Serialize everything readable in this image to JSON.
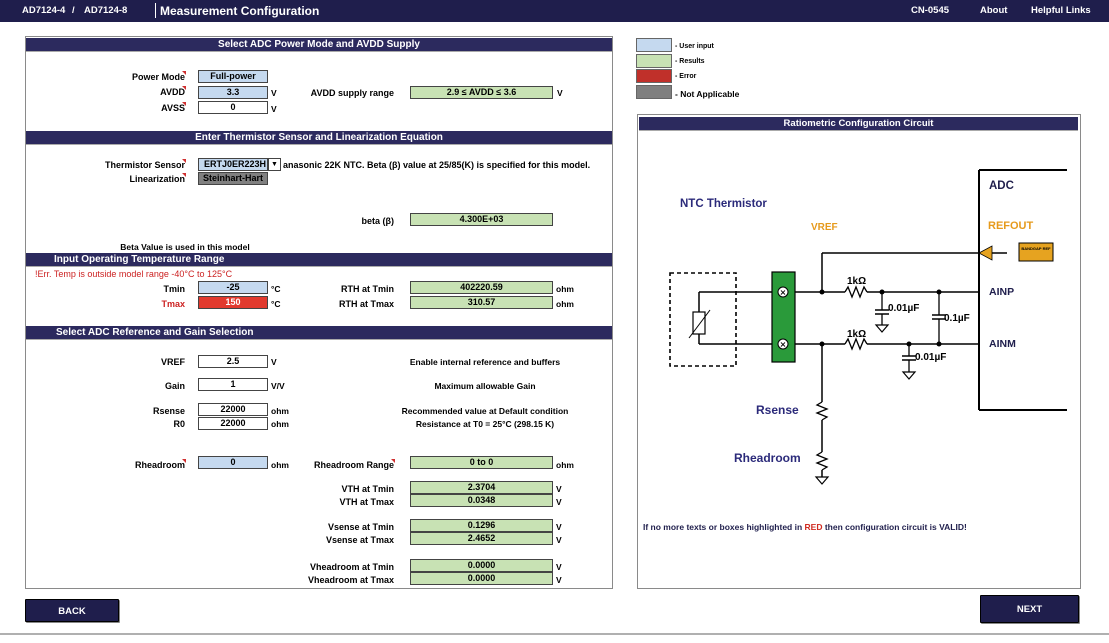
{
  "topbar": {
    "part1": "AD7124-4",
    "slash": "/",
    "part2": "AD7124-8",
    "title": "Measurement Configuration",
    "cn": "CN-0545",
    "about": "About",
    "links": "Helpful Links"
  },
  "sections": {
    "power": "Select ADC Power Mode and AVDD Supply",
    "thermistor": "Enter Thermistor Sensor and Linearization Equation",
    "temperature": "Input Operating Temperature Range",
    "reference": "Select ADC Reference and Gain Selection"
  },
  "power": {
    "mode_label": "Power Mode",
    "mode_value": "Full-power",
    "avdd_label": "AVDD",
    "avdd_value": "3.3",
    "avdd_unit": "V",
    "avss_label": "AVSS",
    "avss_value": "0",
    "avss_unit": "V",
    "range_label": "AVDD supply range",
    "range_value": "2.9 ≤ AVDD ≤ 3.6",
    "range_unit": "V"
  },
  "thermistor": {
    "sensor_label": "Thermistor Sensor",
    "sensor_value": "ERTJ0ER223H",
    "sensor_note": "anasonic 22K NTC. Beta (β) value at 25/85(K) is specified for this model.",
    "lin_label": "Linearization",
    "lin_value": "Steinhart-Hart",
    "beta_label": "beta (β)",
    "beta_value": "4.300E+03",
    "beta_note": "Beta Value is used in this model"
  },
  "temperature": {
    "error": "!Err. Temp is outside model range -40°C to 125°C",
    "tmin_label": "Tmin",
    "tmin_value": "-25",
    "tmin_unit": "°C",
    "tmax_label": "Tmax",
    "tmax_value": "150",
    "tmax_unit": "°C",
    "rth_min_label": "RTH at Tmin",
    "rth_min_value": "402220.59",
    "rth_min_unit": "ohm",
    "rth_max_label": "RTH at Tmax",
    "rth_max_value": "310.57",
    "rth_max_unit": "ohm"
  },
  "reference": {
    "vref_label": "VREF",
    "vref_value": "2.5",
    "vref_unit": "V",
    "vref_note": "Enable internal reference and buffers",
    "gain_label": "Gain",
    "gain_value": "1",
    "gain_unit": "V/V",
    "gain_note": "Maximum allowable Gain",
    "rsense_label": "Rsense",
    "rsense_value": "22000",
    "rsense_unit": "ohm",
    "rsense_note": "Recommended value at Default condition",
    "r0_label": "R0",
    "r0_value": "22000",
    "r0_unit": "ohm",
    "r0_note": "Resistance at T0 = 25°C  (298.15 K)",
    "rhead_label": "Rheadroom",
    "rhead_value": "0",
    "rhead_unit": "ohm",
    "rhead_range_label": "Rheadroom Range",
    "rhead_range_value": "0 to 0",
    "rhead_range_unit": "ohm",
    "vth_min_label": "VTH at Tmin",
    "vth_min_value": "2.3704",
    "vth_max_label": "VTH at Tmax",
    "vth_max_value": "0.0348",
    "vsense_min_label": "Vsense at Tmin",
    "vsense_min_value": "0.1296",
    "vsense_max_label": "Vsense at Tmax",
    "vsense_max_value": "2.4652",
    "vhead_min_label": "Vheadroom at Tmin",
    "vhead_min_value": "0.0000",
    "vhead_max_label": "Vheadroom at Tmax",
    "vhead_max_value": "0.0000",
    "v_unit": "V"
  },
  "legend": {
    "user_input": "- User input",
    "results": "- Results",
    "error": "- Error",
    "na": "- Not Applicable",
    "colors": {
      "user_input": "#c5d9ef",
      "results": "#c8e2b4",
      "error": "#c0302a",
      "na": "#7f7f7f"
    }
  },
  "circuit": {
    "title": "Ratiometric Configuration Circuit",
    "ntc": "NTC Thermistor",
    "vref": "VREF",
    "adc": "ADC",
    "refout": "REFOUT",
    "bandgap": "BANDGAP REF",
    "ainp": "AINP",
    "ainm": "AINM",
    "r1": "1kΩ",
    "r2": "1kΩ",
    "c1": "0.01µF",
    "c2": "0.1µF",
    "c3": "0.01µF",
    "rsense": "Rsense",
    "rheadroom": "Rheadroom",
    "status_pre": "If no more texts or boxes highlighted in ",
    "status_red": "RED",
    "status_post": " then configuration circuit is VALID!"
  },
  "buttons": {
    "back": "BACK",
    "next": "NEXT"
  }
}
